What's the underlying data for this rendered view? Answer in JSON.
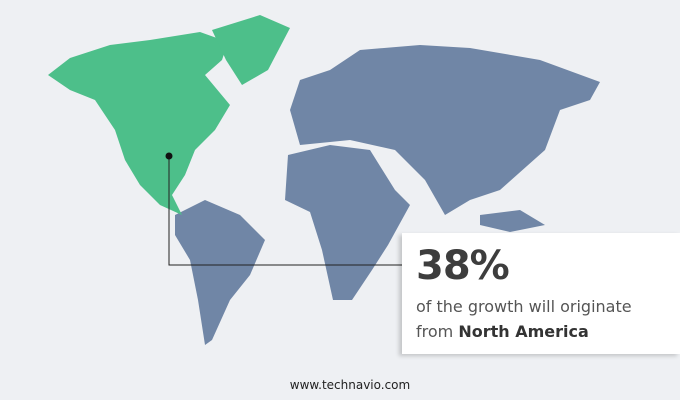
{
  "map": {
    "highlight_region": "North America",
    "colors": {
      "highlight": "#4dbf8a",
      "other": "#7086a6",
      "background": "#eef0f3"
    }
  },
  "callout": {
    "percent": "38%",
    "line1": "of the growth will originate",
    "line2_prefix": "from",
    "line2_region": "North America"
  },
  "footer": {
    "website": "www.technavio.com"
  }
}
